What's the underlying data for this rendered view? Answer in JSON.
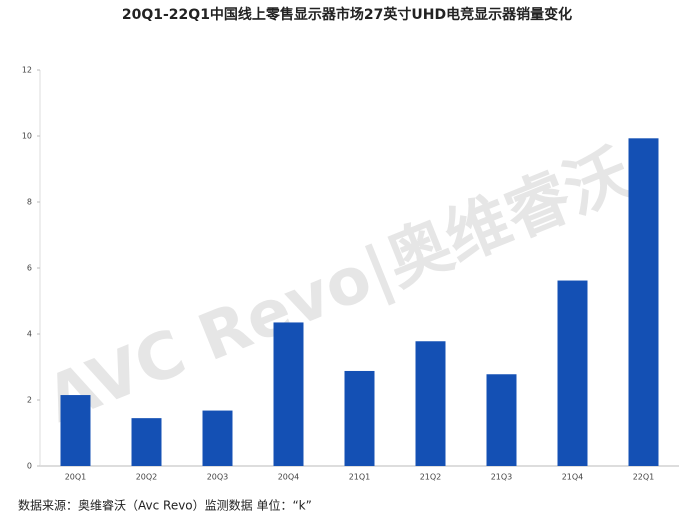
{
  "chart_data": {
    "type": "bar",
    "title": "20Q1-22Q1中国线上零售显示器市场27英寸UHD电竞显示器销量变化",
    "categories": [
      "20Q1",
      "20Q2",
      "20Q3",
      "20Q4",
      "21Q1",
      "21Q2",
      "21Q3",
      "21Q4",
      "22Q1"
    ],
    "values": [
      2.15,
      1.45,
      1.68,
      4.35,
      2.88,
      3.78,
      2.78,
      5.62,
      9.93
    ],
    "color": "#1450b4",
    "ylim": [
      0,
      12
    ],
    "yticks": [
      0,
      2,
      4,
      6,
      8,
      10,
      12
    ],
    "grid": false,
    "watermark": "AVC Revo|奥维睿沃",
    "source": "数据来源：奥维睿沃（Avc Revo）监测数据 单位：“k”"
  }
}
